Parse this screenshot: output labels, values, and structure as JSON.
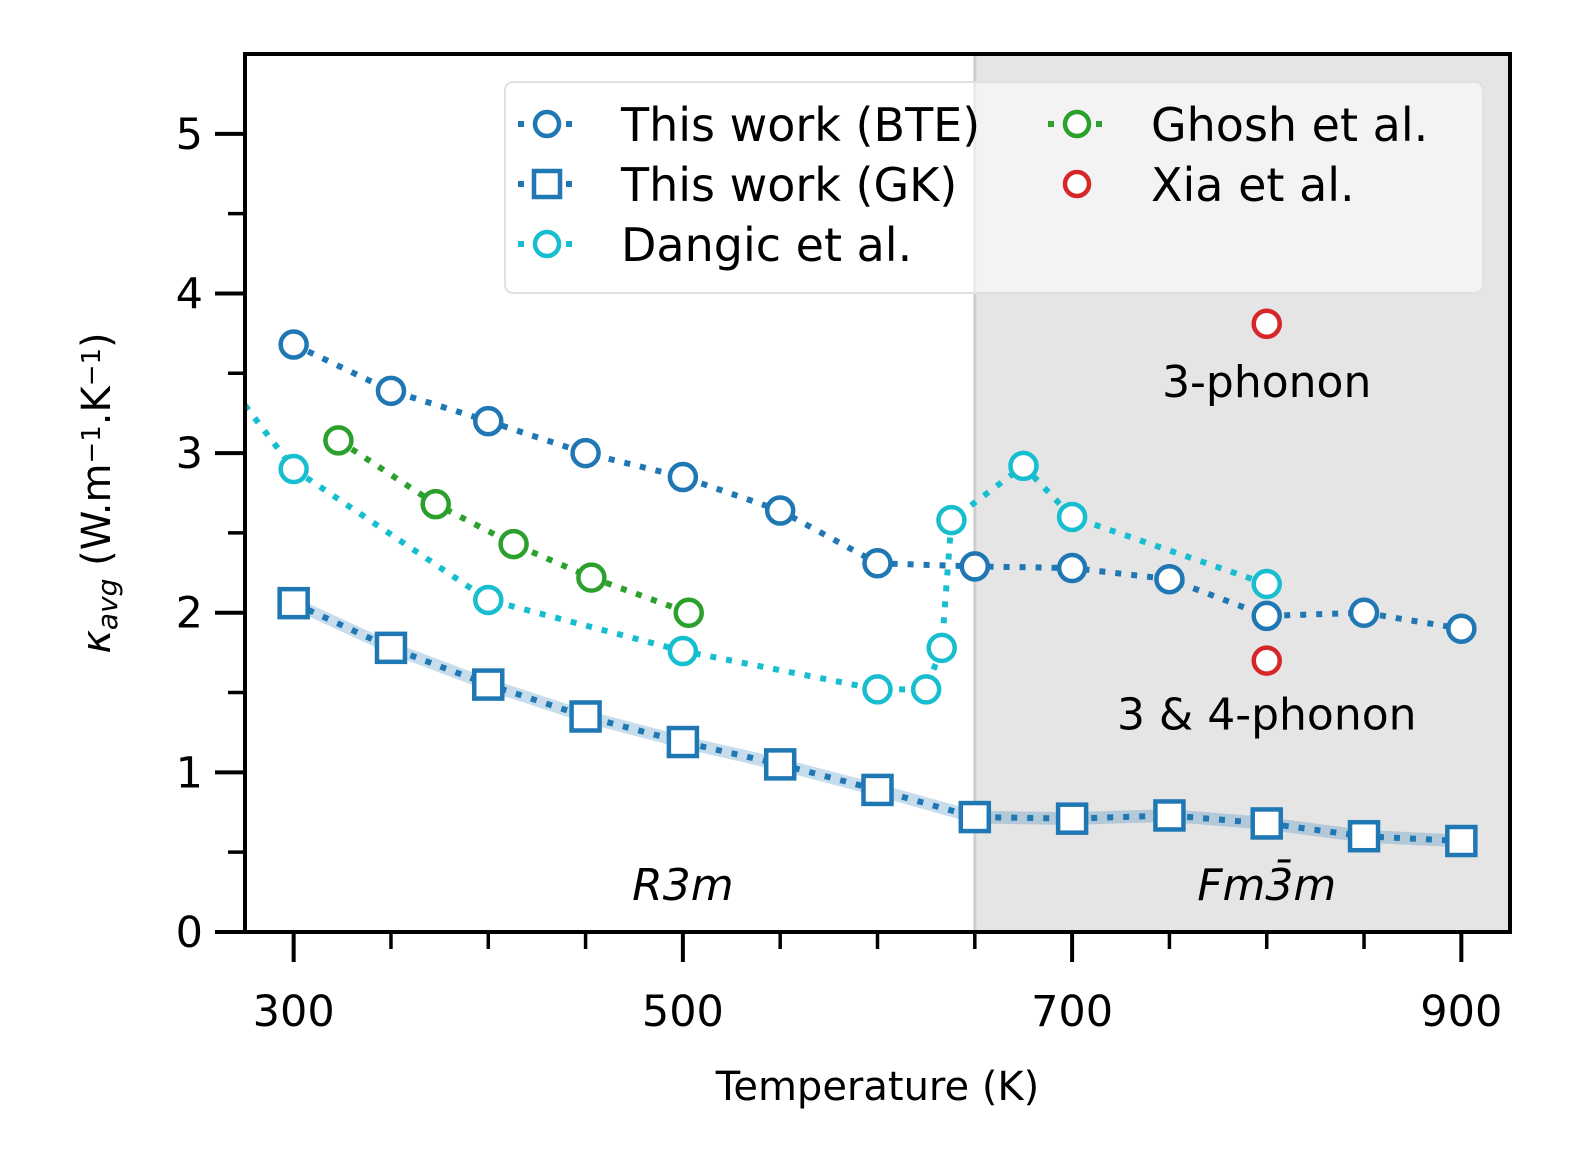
{
  "chart_data": {
    "type": "line",
    "xlabel": "Temperature (K)",
    "ylabel": {
      "kappa": "κ",
      "sub": "avg",
      "units_open": " (W.m",
      "exp1": "−1",
      "units_mid": ".K",
      "exp2": "−1",
      "units_close": ")"
    },
    "xlim": [
      275,
      925
    ],
    "ylim": [
      0,
      5.5
    ],
    "x_ticks": [
      300,
      500,
      700,
      900
    ],
    "x_minor_ticks": [
      350,
      400,
      450,
      550,
      600,
      650,
      750,
      800,
      850
    ],
    "y_ticks": [
      0,
      1,
      2,
      3,
      4,
      5
    ],
    "y_minor_ticks": [
      0.5,
      1.5,
      2.5,
      3.5,
      4.5
    ],
    "grid": false,
    "shaded_region": {
      "from": 650,
      "to": 925,
      "color": "#e5e5e5"
    },
    "phase_labels": [
      {
        "text": "R3m",
        "x": 500,
        "y": 0.2
      },
      {
        "text": "Fm3̄m",
        "x": 800,
        "y": 0.2
      }
    ],
    "annotations": [
      {
        "text": "3-phonon",
        "x": 800,
        "y": 3.35
      },
      {
        "text": "3 & 4-phonon",
        "x": 800,
        "y": 1.27
      }
    ],
    "legend_position": "top-right",
    "series": [
      {
        "name": "This work (BTE)",
        "color": "#1f77b4",
        "marker": "circle",
        "line": "dotted",
        "x": [
          300,
          350,
          400,
          450,
          500,
          550,
          600,
          650,
          700,
          750,
          800,
          850,
          900
        ],
        "y": [
          3.68,
          3.39,
          3.2,
          3.0,
          2.85,
          2.64,
          2.31,
          2.29,
          2.28,
          2.21,
          1.98,
          2.0,
          1.9
        ]
      },
      {
        "name": "This work (GK)",
        "color": "#1f77b4",
        "marker": "square",
        "line": "dotted",
        "band": 0.04,
        "x": [
          300,
          350,
          400,
          450,
          500,
          550,
          600,
          650,
          700,
          750,
          800,
          850,
          900
        ],
        "y": [
          2.06,
          1.78,
          1.55,
          1.35,
          1.19,
          1.05,
          0.89,
          0.72,
          0.71,
          0.73,
          0.68,
          0.6,
          0.57
        ]
      },
      {
        "name": "Dangic et al.",
        "color": "#17becf",
        "marker": "circle",
        "line": "dotted",
        "x": [
          275,
          300,
          400,
          500,
          600,
          625,
          633,
          638,
          675,
          700,
          800
        ],
        "y": [
          3.3,
          2.9,
          2.08,
          1.76,
          1.52,
          1.52,
          1.78,
          2.58,
          2.92,
          2.6,
          2.18
        ],
        "marker_mask": [
          false,
          true,
          true,
          true,
          true,
          true,
          true,
          true,
          true,
          true,
          true
        ]
      },
      {
        "name": "Ghosh et al.",
        "color": "#2ca02c",
        "marker": "circle",
        "line": "dotted",
        "x": [
          323,
          373,
          413,
          453,
          503
        ],
        "y": [
          3.08,
          2.68,
          2.43,
          2.22,
          2.0
        ]
      },
      {
        "name": "Xia et al.",
        "color": "#d62728",
        "marker": "circle",
        "line": "none",
        "x": [
          800,
          800
        ],
        "y": [
          3.81,
          1.7
        ]
      }
    ]
  }
}
